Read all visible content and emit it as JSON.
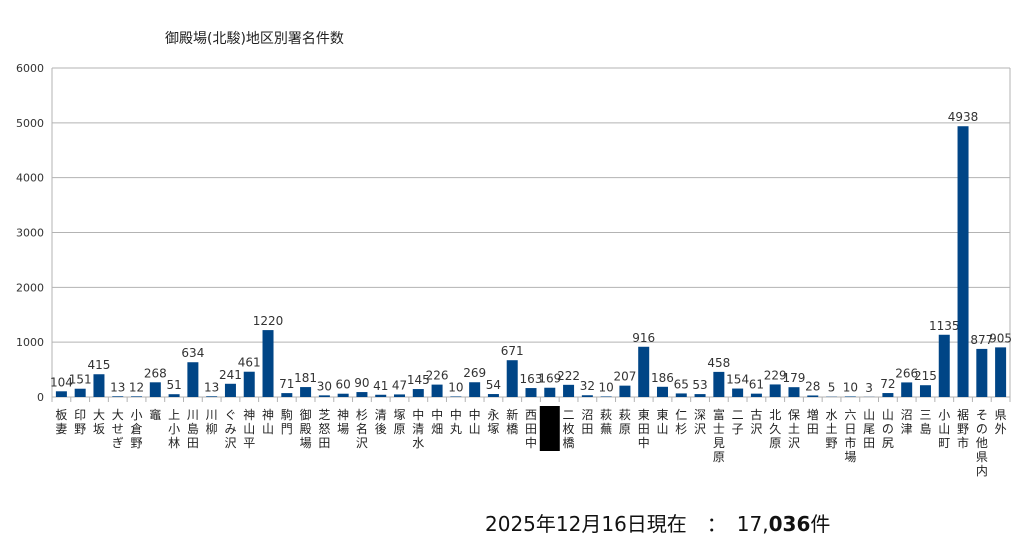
{
  "chart_data": {
    "type": "bar",
    "title": "御殿場(北駿)地区別署名件数",
    "xlabel": "",
    "ylabel": "",
    "ylim": [
      0,
      6000
    ],
    "yticks": [
      0,
      1000,
      2000,
      3000,
      4000,
      5000,
      6000
    ],
    "grid": true,
    "bar_color": "#004586",
    "categories": [
      "板妻",
      "印野",
      "大坂",
      "大せぎ",
      "小倉野",
      "竈",
      "上小林",
      "川島田",
      "川柳",
      "ぐみ沢",
      "神山平",
      "神山",
      "駒門",
      "御殿場",
      "芝怒田",
      "神場",
      "杉名沢",
      "清後",
      "塚原",
      "中清水",
      "中畑",
      "中丸",
      "中山",
      "永塚",
      "新橋",
      "西田中",
      "",
      "二枚橋",
      "沼田",
      "萩蕪",
      "萩原",
      "東田中",
      "東山",
      "仁杉",
      "深沢",
      "富士見原",
      "二子",
      "古沢",
      "北久原",
      "保土沢",
      "増田",
      "水土野",
      "六日市場",
      "山尾田",
      "山の尻",
      "沼津",
      "三島",
      "小山町",
      "裾野市",
      "その他県内",
      "県外"
    ],
    "values": [
      104,
      151,
      415,
      13,
      12,
      268,
      51,
      634,
      13,
      241,
      461,
      1220,
      71,
      181,
      30,
      60,
      90,
      41,
      47,
      145,
      226,
      10,
      269,
      54,
      671,
      163,
      169,
      222,
      32,
      10,
      207,
      916,
      186,
      65,
      53,
      458,
      154,
      61,
      229,
      179,
      28,
      5,
      10,
      3,
      72,
      266,
      215,
      1135,
      4938,
      877,
      905
    ],
    "redacted_index": 26
  },
  "footer": {
    "date_text": "2025年12月16日現在　：　",
    "total_prefix": "17,",
    "total_bold": "036",
    "total_suffix": "件"
  }
}
